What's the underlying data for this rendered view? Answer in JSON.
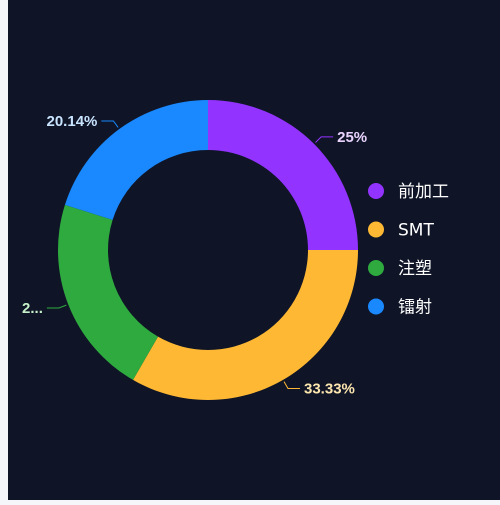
{
  "chart_data": {
    "type": "pie",
    "variant": "donut",
    "categories": [
      "前加工",
      "SMT",
      "注塑",
      "镭射"
    ],
    "values": [
      25,
      33.33,
      21.53,
      20.14
    ],
    "percent_labels": [
      "25%",
      "33.33%",
      "2...",
      "20.14%"
    ],
    "colors": [
      "#9333ff",
      "#ffb833",
      "#2eaa3f",
      "#1a88ff"
    ],
    "label_colors": [
      "#e9d4ff",
      "#ffe7b0",
      "#c6f0c9",
      "#c9e4ff"
    ],
    "legend_position": "right"
  }
}
